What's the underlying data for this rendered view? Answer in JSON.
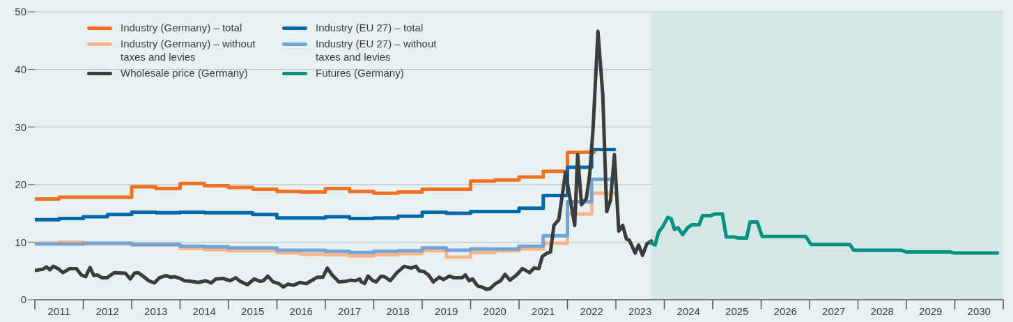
{
  "chart_data": {
    "type": "line",
    "legend": "top left",
    "grid": "y",
    "ylim": [
      0,
      50
    ],
    "yticks": [
      0,
      10,
      20,
      30,
      40,
      50
    ],
    "xlim": [
      2011,
      2031
    ],
    "xticks": [
      {
        "value": 2011,
        "label": null
      },
      {
        "value": 2011.5,
        "label": "2011"
      },
      {
        "value": 2012,
        "label": null
      },
      {
        "value": 2012.5,
        "label": "2012"
      },
      {
        "value": 2013,
        "label": null
      },
      {
        "value": 2013.5,
        "label": "2013"
      },
      {
        "value": 2014,
        "label": null
      },
      {
        "value": 2014.5,
        "label": "2014"
      },
      {
        "value": 2015,
        "label": null
      },
      {
        "value": 2015.5,
        "label": "2015"
      },
      {
        "value": 2016,
        "label": null
      },
      {
        "value": 2016.5,
        "label": "2016"
      },
      {
        "value": 2017,
        "label": null
      },
      {
        "value": 2017.5,
        "label": "2017"
      },
      {
        "value": 2018,
        "label": null
      },
      {
        "value": 2018.5,
        "label": "2018"
      },
      {
        "value": 2019,
        "label": null
      },
      {
        "value": 2019.5,
        "label": "2019"
      },
      {
        "value": 2020,
        "label": null
      },
      {
        "value": 2020.5,
        "label": "2020"
      },
      {
        "value": 2021,
        "label": null
      },
      {
        "value": 2021.5,
        "label": "2021"
      },
      {
        "value": 2022,
        "label": null
      },
      {
        "value": 2022.5,
        "label": "2022"
      },
      {
        "value": 2023,
        "label": null
      },
      {
        "value": 2023.5,
        "label": "2023"
      },
      {
        "value": 2024,
        "label": null
      },
      {
        "value": 2024.5,
        "label": "2024"
      },
      {
        "value": 2025,
        "label": null
      },
      {
        "value": 2025.5,
        "label": "2025"
      },
      {
        "value": 2026,
        "label": null
      },
      {
        "value": 2026.5,
        "label": "2026"
      },
      {
        "value": 2027,
        "label": null
      },
      {
        "value": 2027.5,
        "label": "2027"
      },
      {
        "value": 2028,
        "label": null
      },
      {
        "value": 2028.5,
        "label": "2028"
      },
      {
        "value": 2029,
        "label": null
      },
      {
        "value": 2029.5,
        "label": "2029"
      },
      {
        "value": 2030,
        "label": null
      },
      {
        "value": 2030.5,
        "label": "2030"
      },
      {
        "value": 2031,
        "label": null
      }
    ],
    "bands": [
      {
        "axis": "x",
        "from": 2023.73,
        "to": 2031,
        "color": "#d4e6e6"
      }
    ],
    "series": [
      {
        "name": "Industry (Germany) – total",
        "type": "step",
        "color": "#f36f21",
        "x": [
          2011,
          2011.5,
          2012,
          2012.5,
          2013,
          2013.5,
          2014,
          2014.5,
          2015,
          2015.5,
          2016,
          2016.5,
          2017,
          2017.5,
          2018,
          2018.5,
          2019,
          2019.5,
          2020,
          2020.5,
          2021,
          2021.5,
          2022,
          2022.5,
          2022.55
        ],
        "values": [
          17.5,
          17.8,
          17.8,
          17.8,
          19.6,
          19.3,
          20.2,
          19.8,
          19.5,
          19.2,
          18.8,
          18.7,
          19.3,
          18.8,
          18.5,
          18.7,
          19.2,
          19.2,
          20.6,
          20.8,
          21.3,
          22.3,
          25.6,
          25.6,
          25.6
        ]
      },
      {
        "name": "Industry (EU 27) – total",
        "type": "step",
        "color": "#0068a8",
        "x": [
          2011,
          2011.5,
          2012,
          2012.5,
          2013,
          2013.5,
          2014,
          2014.5,
          2015,
          2015.5,
          2016,
          2016.5,
          2017,
          2017.5,
          2018,
          2018.5,
          2019,
          2019.5,
          2020,
          2020.5,
          2021,
          2021.5,
          2022,
          2022.5,
          2022.97
        ],
        "values": [
          13.9,
          14.1,
          14.4,
          14.8,
          15.2,
          15.1,
          15.2,
          15.1,
          15.1,
          14.8,
          14.2,
          14.2,
          14.4,
          14.1,
          14.2,
          14.5,
          15.2,
          15.0,
          15.3,
          15.3,
          15.9,
          18.1,
          23.0,
          26.1,
          26.1
        ]
      },
      {
        "name": "Industry (Germany) – without taxes and levies",
        "type": "step",
        "color": "#fbb48a",
        "x": [
          2011,
          2011.5,
          2012,
          2012.5,
          2013,
          2013.5,
          2014,
          2014.5,
          2015,
          2015.5,
          2016,
          2016.5,
          2017,
          2017.5,
          2018,
          2018.5,
          2019,
          2019.5,
          2020,
          2020.5,
          2021,
          2021.5,
          2022,
          2022.5,
          2022.97
        ],
        "values": [
          9.8,
          10.0,
          9.7,
          9.7,
          9.5,
          9.5,
          8.9,
          8.7,
          8.5,
          8.5,
          8.1,
          7.9,
          7.8,
          7.6,
          7.8,
          8.0,
          8.5,
          7.4,
          8.2,
          8.5,
          8.8,
          9.8,
          14.9,
          18.5,
          18.5
        ]
      },
      {
        "name": "Industry (EU 27) – without taxes and levies",
        "type": "step",
        "color": "#72a4d4",
        "x": [
          2011,
          2011.5,
          2012,
          2012.5,
          2013,
          2013.5,
          2014,
          2014.5,
          2015,
          2015.5,
          2016,
          2016.5,
          2017,
          2017.5,
          2018,
          2018.5,
          2019,
          2019.5,
          2020,
          2020.5,
          2021,
          2021.5,
          2022,
          2022.5,
          2022.92
        ],
        "values": [
          9.7,
          9.7,
          9.8,
          9.8,
          9.6,
          9.6,
          9.3,
          9.2,
          9.0,
          9.0,
          8.6,
          8.6,
          8.4,
          8.2,
          8.4,
          8.5,
          9.0,
          8.6,
          8.8,
          8.8,
          9.3,
          11.1,
          17.0,
          20.9,
          20.9
        ]
      },
      {
        "name": "Wholesale price (Germany)",
        "color": "#3c3c3c",
        "x": [
          2011.02,
          2011.17,
          2011.24,
          2011.31,
          2011.38,
          2011.48,
          2011.58,
          2011.72,
          2011.86,
          2011.96,
          2012.05,
          2012.14,
          2012.22,
          2012.29,
          2012.39,
          2012.49,
          2012.64,
          2012.87,
          2012.97,
          2013.06,
          2013.13,
          2013.25,
          2013.35,
          2013.47,
          2013.57,
          2013.71,
          2013.81,
          2013.88,
          2014.0,
          2014.09,
          2014.21,
          2014.38,
          2014.53,
          2014.64,
          2014.74,
          2014.88,
          2015.03,
          2015.15,
          2015.24,
          2015.39,
          2015.53,
          2015.65,
          2015.72,
          2015.81,
          2015.92,
          2016.04,
          2016.13,
          2016.23,
          2016.35,
          2016.47,
          2016.61,
          2016.71,
          2016.83,
          2016.95,
          2017.04,
          2017.14,
          2017.28,
          2017.43,
          2017.52,
          2017.62,
          2017.71,
          2017.74,
          2017.81,
          2017.88,
          2017.98,
          2018.05,
          2018.15,
          2018.22,
          2018.34,
          2018.48,
          2018.63,
          2018.77,
          2018.87,
          2018.94,
          2019.03,
          2019.13,
          2019.23,
          2019.35,
          2019.44,
          2019.56,
          2019.66,
          2019.82,
          2019.89,
          2019.97,
          2020.04,
          2020.14,
          2020.23,
          2020.33,
          2020.4,
          2020.5,
          2020.62,
          2020.71,
          2020.81,
          2020.95,
          2021.07,
          2021.22,
          2021.31,
          2021.41,
          2021.48,
          2021.58,
          2021.65,
          2021.72,
          2021.82,
          2021.96,
          2022.15,
          2022.21,
          2022.29,
          2022.39,
          2022.46,
          2022.53,
          2022.63,
          2022.73,
          2022.81,
          2022.89,
          2022.97,
          2023.06,
          2023.14,
          2023.22,
          2023.28,
          2023.4,
          2023.47,
          2023.55,
          2023.64,
          2023.73
        ],
        "values": [
          5.1,
          5.3,
          5.7,
          5.2,
          5.8,
          5.4,
          4.7,
          5.4,
          5.4,
          4.3,
          4.0,
          5.6,
          4.2,
          4.3,
          3.8,
          3.8,
          4.7,
          4.6,
          3.6,
          4.6,
          4.7,
          4.0,
          3.3,
          2.9,
          3.8,
          4.2,
          3.9,
          4.0,
          3.7,
          3.3,
          3.2,
          3.0,
          3.3,
          2.9,
          3.6,
          3.7,
          3.3,
          3.8,
          3.2,
          2.6,
          3.6,
          3.2,
          3.3,
          4.1,
          3.1,
          2.8,
          2.2,
          2.7,
          2.5,
          3.0,
          2.8,
          3.3,
          3.9,
          3.9,
          5.5,
          4.3,
          3.1,
          3.2,
          3.4,
          3.3,
          3.6,
          3.1,
          2.8,
          4.1,
          3.3,
          3.1,
          4.1,
          4.0,
          3.3,
          4.7,
          5.8,
          5.5,
          5.8,
          5.0,
          4.9,
          4.3,
          3.1,
          3.9,
          3.5,
          4.1,
          3.8,
          3.8,
          4.3,
          3.3,
          3.6,
          2.4,
          2.2,
          1.8,
          1.9,
          2.7,
          3.3,
          4.4,
          3.4,
          4.3,
          5.4,
          4.7,
          5.5,
          5.4,
          7.5,
          8.1,
          8.3,
          12.9,
          13.9,
          22.1,
          12.9,
          25.2,
          16.5,
          17.6,
          21.8,
          29.9,
          46.6,
          35.5,
          15.3,
          17.3,
          25.2,
          11.9,
          12.9,
          10.5,
          10.3,
          8.1,
          9.5,
          7.7,
          9.7,
          10.2
        ]
      },
      {
        "name": "Futures (Germany)",
        "color": "#009182",
        "x": [
          2023.72,
          2023.81,
          2023.88,
          2023.97,
          2024.07,
          2024.14,
          2024.21,
          2024.28,
          2024.38,
          2024.48,
          2024.57,
          2024.72,
          2024.79,
          2024.96,
          2025.05,
          2025.2,
          2025.28,
          2025.44,
          2025.53,
          2025.7,
          2025.77,
          2025.92,
          2026.02,
          2026.92,
          2027.03,
          2027.83,
          2027.91,
          2028.89,
          2028.99,
          2029.9,
          2029.99,
          2030.88
        ],
        "values": [
          9.9,
          9.5,
          11.7,
          12.7,
          14.3,
          14.1,
          12.2,
          12.5,
          11.3,
          12.5,
          13.0,
          13.0,
          14.6,
          14.6,
          14.9,
          14.9,
          10.9,
          10.9,
          10.7,
          10.7,
          13.5,
          13.5,
          11.0,
          11.0,
          9.6,
          9.6,
          8.6,
          8.6,
          8.3,
          8.3,
          8.1,
          8.1
        ]
      }
    ]
  }
}
